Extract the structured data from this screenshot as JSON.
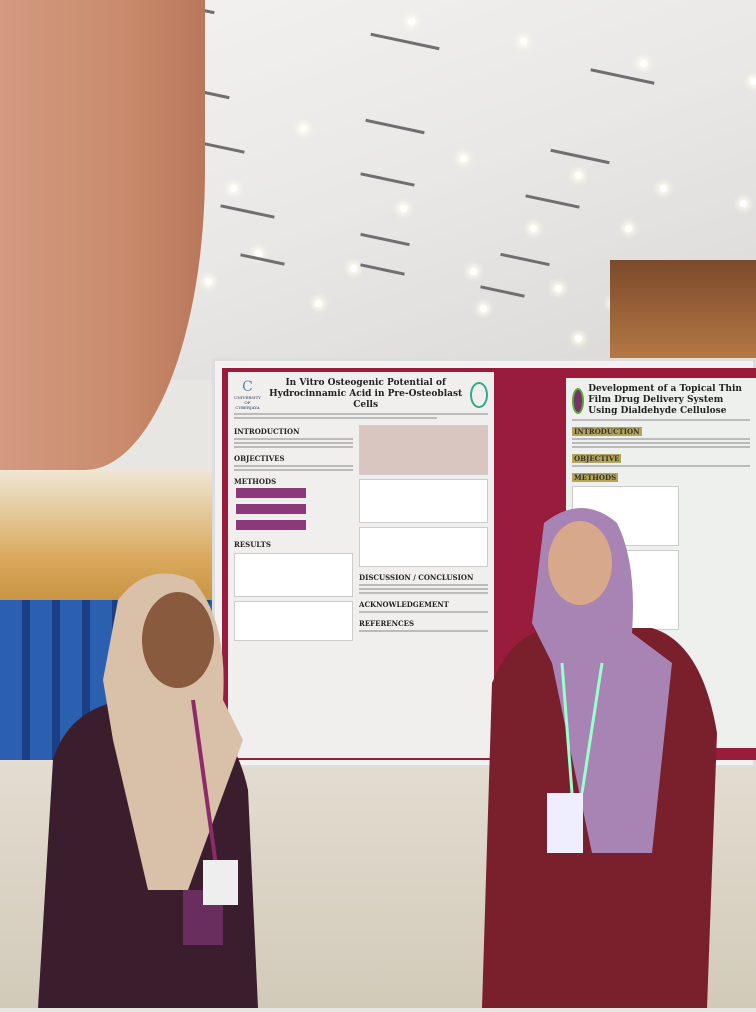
{
  "poster_left": {
    "logo_text": "UNIVERSITY OF CYBERJAYA",
    "title": "In Vitro Osteogenic Potential of Hydrocinnamic Acid in Pre-Osteoblast Cells",
    "sections": [
      "INTRODUCTION",
      "OBJECTIVES",
      "METHODS",
      "RESULTS",
      "DISCUSSION / CONCLUSION",
      "ACKNOWLEDGEMENT",
      "REFERENCES"
    ]
  },
  "poster_right": {
    "title": "Development of a Topical Thin Film Drug Delivery System Using Dialdehyde Cellulose",
    "sections": [
      "INTRODUCTION",
      "OBJECTIVE",
      "METHODS"
    ]
  },
  "colors": {
    "wood_wall": "#c98b6c",
    "poster_backing": "#9a1c3c",
    "accent_purple": "#8a3a7a",
    "floor": "#dcd5c6"
  }
}
